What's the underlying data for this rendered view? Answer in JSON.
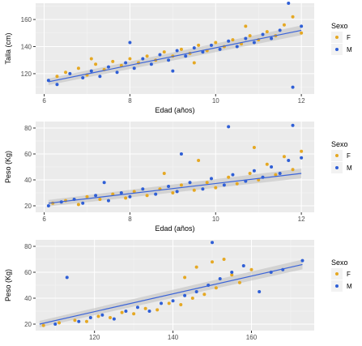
{
  "chart_data": [
    {
      "type": "scatter",
      "xlabel": "Edad (años)",
      "ylabel": "Talla (cm)",
      "xlim": [
        5.8,
        12.3
      ],
      "ylim": [
        105,
        172
      ],
      "xticks": [
        6,
        8,
        10,
        12
      ],
      "yticks": [
        120,
        140,
        160
      ],
      "grid": true,
      "legend": {
        "title": "Sexo",
        "position": "right",
        "entries": [
          "F",
          "M"
        ]
      },
      "series": [
        {
          "name": "F",
          "color": "#E5A823",
          "points": [
            [
              6.3,
              118
            ],
            [
              6.5,
              121
            ],
            [
              6.8,
              124
            ],
            [
              7.0,
              119
            ],
            [
              7.2,
              127
            ],
            [
              7.4,
              123
            ],
            [
              7.6,
              129
            ],
            [
              7.8,
              126
            ],
            [
              8.0,
              131
            ],
            [
              8.2,
              128
            ],
            [
              8.4,
              133
            ],
            [
              8.6,
              130
            ],
            [
              8.8,
              136
            ],
            [
              9.0,
              133
            ],
            [
              9.2,
              138
            ],
            [
              9.4,
              135
            ],
            [
              9.6,
              141
            ],
            [
              9.8,
              137
            ],
            [
              10.0,
              143
            ],
            [
              10.2,
              140
            ],
            [
              10.4,
              145
            ],
            [
              10.6,
              142
            ],
            [
              10.8,
              148
            ],
            [
              11.0,
              145
            ],
            [
              11.2,
              151
            ],
            [
              11.4,
              148
            ],
            [
              11.6,
              156
            ],
            [
              11.8,
              162
            ],
            [
              12.0,
              150
            ],
            [
              7.1,
              131
            ],
            [
              9.5,
              128
            ],
            [
              10.7,
              155
            ]
          ]
        },
        {
          "name": "M",
          "color": "#2F5FD6",
          "points": [
            [
              6.1,
              115
            ],
            [
              6.3,
              112
            ],
            [
              6.6,
              120
            ],
            [
              6.9,
              117
            ],
            [
              7.1,
              122
            ],
            [
              7.3,
              118
            ],
            [
              7.5,
              125
            ],
            [
              7.7,
              121
            ],
            [
              7.9,
              128
            ],
            [
              8.1,
              124
            ],
            [
              8.3,
              131
            ],
            [
              8.5,
              127
            ],
            [
              8.7,
              134
            ],
            [
              8.9,
              130
            ],
            [
              9.1,
              137
            ],
            [
              9.3,
              133
            ],
            [
              9.5,
              139
            ],
            [
              9.7,
              136
            ],
            [
              9.9,
              141
            ],
            [
              10.1,
              138
            ],
            [
              10.3,
              144
            ],
            [
              10.5,
              140
            ],
            [
              10.7,
              146
            ],
            [
              10.9,
              143
            ],
            [
              11.1,
              149
            ],
            [
              11.3,
              146
            ],
            [
              11.5,
              152
            ],
            [
              11.7,
              172
            ],
            [
              11.8,
              110
            ],
            [
              12.0,
              155
            ],
            [
              8.0,
              143
            ],
            [
              9.0,
              122
            ]
          ]
        }
      ],
      "trend": {
        "color": "#3A63D8",
        "x": [
          6.1,
          12.0
        ],
        "y": [
          114,
          152
        ]
      }
    },
    {
      "type": "scatter",
      "xlabel": "Edad (años)",
      "ylabel": "Peso (Kg)",
      "xlim": [
        5.8,
        12.3
      ],
      "ylim": [
        15,
        85
      ],
      "xticks": [
        6,
        8,
        10,
        12
      ],
      "yticks": [
        20,
        40,
        60,
        80
      ],
      "grid": true,
      "legend": {
        "title": "Sexo",
        "position": "right",
        "entries": [
          "F",
          "M"
        ]
      },
      "series": [
        {
          "name": "F",
          "color": "#E5A823",
          "points": [
            [
              6.2,
              22
            ],
            [
              6.5,
              24
            ],
            [
              6.8,
              21
            ],
            [
              7.0,
              27
            ],
            [
              7.3,
              25
            ],
            [
              7.6,
              29
            ],
            [
              7.9,
              26
            ],
            [
              8.1,
              31
            ],
            [
              8.4,
              28
            ],
            [
              8.7,
              33
            ],
            [
              9.0,
              30
            ],
            [
              9.2,
              36
            ],
            [
              9.5,
              32
            ],
            [
              9.8,
              38
            ],
            [
              10.0,
              34
            ],
            [
              10.3,
              42
            ],
            [
              10.5,
              37
            ],
            [
              10.8,
              45
            ],
            [
              11.0,
              40
            ],
            [
              11.2,
              52
            ],
            [
              11.4,
              44
            ],
            [
              11.6,
              58
            ],
            [
              11.8,
              48
            ],
            [
              12.0,
              62
            ],
            [
              9.6,
              55
            ],
            [
              10.9,
              65
            ],
            [
              8.8,
              45
            ]
          ]
        },
        {
          "name": "M",
          "color": "#2F5FD6",
          "points": [
            [
              6.1,
              20
            ],
            [
              6.4,
              23
            ],
            [
              6.7,
              25
            ],
            [
              6.9,
              22
            ],
            [
              7.2,
              28
            ],
            [
              7.5,
              24
            ],
            [
              7.8,
              30
            ],
            [
              8.0,
              27
            ],
            [
              8.3,
              33
            ],
            [
              8.6,
              29
            ],
            [
              8.9,
              35
            ],
            [
              9.1,
              31
            ],
            [
              9.4,
              38
            ],
            [
              9.7,
              33
            ],
            [
              9.9,
              41
            ],
            [
              10.2,
              36
            ],
            [
              10.4,
              44
            ],
            [
              10.7,
              39
            ],
            [
              10.9,
              47
            ],
            [
              11.1,
              42
            ],
            [
              11.3,
              50
            ],
            [
              11.5,
              45
            ],
            [
              11.7,
              55
            ],
            [
              11.8,
              82
            ],
            [
              12.0,
              57
            ],
            [
              10.3,
              81
            ],
            [
              7.4,
              38
            ],
            [
              9.2,
              60
            ]
          ]
        }
      ],
      "trend": {
        "color": "#3A63D8",
        "x": [
          6.1,
          12.0
        ],
        "y": [
          22,
          45
        ]
      }
    },
    {
      "type": "scatter",
      "xlabel": "",
      "ylabel": "Peso (Kg)",
      "xlim": [
        105,
        176
      ],
      "ylim": [
        15,
        85
      ],
      "xticks": [
        120,
        140,
        160
      ],
      "yticks": [
        20,
        40,
        60,
        80
      ],
      "grid": true,
      "legend": {
        "title": "Sexo",
        "position": "right",
        "entries": [
          "F",
          "M"
        ]
      },
      "series": [
        {
          "name": "F",
          "color": "#E5A823",
          "points": [
            [
              107,
              19
            ],
            [
              111,
              21
            ],
            [
              115,
              23
            ],
            [
              118,
              22
            ],
            [
              121,
              26
            ],
            [
              124,
              25
            ],
            [
              127,
              29
            ],
            [
              130,
              28
            ],
            [
              133,
              32
            ],
            [
              136,
              31
            ],
            [
              139,
              36
            ],
            [
              142,
              35
            ],
            [
              145,
              40
            ],
            [
              148,
              43
            ],
            [
              151,
              48
            ],
            [
              153,
              70
            ],
            [
              155,
              58
            ],
            [
              157,
              52
            ],
            [
              150,
              68
            ],
            [
              160,
              62
            ],
            [
              143,
              56
            ],
            [
              146,
              64
            ]
          ]
        },
        {
          "name": "M",
          "color": "#2F5FD6",
          "points": [
            [
              110,
              20
            ],
            [
              113,
              56
            ],
            [
              116,
              22
            ],
            [
              119,
              25
            ],
            [
              122,
              27
            ],
            [
              125,
              24
            ],
            [
              128,
              30
            ],
            [
              131,
              33
            ],
            [
              134,
              30
            ],
            [
              137,
              36
            ],
            [
              140,
              38
            ],
            [
              143,
              42
            ],
            [
              146,
              45
            ],
            [
              149,
              50
            ],
            [
              150,
              83
            ],
            [
              152,
              55
            ],
            [
              155,
              60
            ],
            [
              158,
              65
            ],
            [
              162,
              45
            ],
            [
              165,
              60
            ],
            [
              168,
              62
            ],
            [
              173,
              69
            ]
          ]
        }
      ],
      "trend": {
        "color": "#3A63D8",
        "x": [
          106,
          173
        ],
        "y": [
          20,
          66
        ]
      }
    }
  ]
}
